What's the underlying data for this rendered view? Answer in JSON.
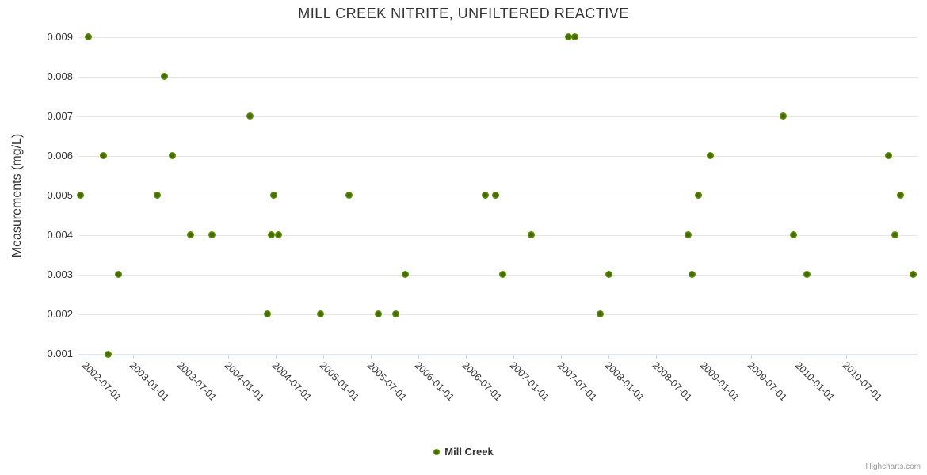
{
  "chart": {
    "title": "MILL CREEK NITRITE, UNFILTERED REACTIVE",
    "y_axis_title": "Measurements (mg/L)",
    "legend_label": "Mill Creek",
    "credit": "Highcharts.com"
  },
  "colors": {
    "marker_green": "#77ad00",
    "marker_green_dark": "#44690a",
    "grid": "#e6e6e6",
    "axis": "#ccd6eb",
    "text": "#333333",
    "credit": "#999999"
  },
  "chart_data": {
    "type": "scatter",
    "title": "MILL CREEK NITRITE, UNFILTERED REACTIVE",
    "xlabel": "",
    "ylabel": "Measurements (mg/L)",
    "ylim": [
      0.001,
      0.009
    ],
    "xlim": [
      "2002-06-05",
      "2011-04-01"
    ],
    "grid": "horizontal-only",
    "legend_position": "bottom-center",
    "y_ticks": [
      0.001,
      0.002,
      0.003,
      0.004,
      0.005,
      0.006,
      0.007,
      0.008,
      0.009
    ],
    "x_ticks": [
      "2002-07-01",
      "2003-01-01",
      "2003-07-01",
      "2004-01-01",
      "2004-07-01",
      "2005-01-01",
      "2005-07-01",
      "2006-01-01",
      "2006-07-01",
      "2007-01-01",
      "2007-07-01",
      "2008-01-01",
      "2008-07-01",
      "2009-01-01",
      "2009-07-01",
      "2010-01-01",
      "2010-07-01"
    ],
    "series": [
      {
        "name": "Mill Creek",
        "color": "#77ad00",
        "points": [
          [
            "2002-06-12",
            0.005
          ],
          [
            "2002-07-12",
            0.009
          ],
          [
            "2002-09-10",
            0.006
          ],
          [
            "2002-09-28",
            0.001
          ],
          [
            "2002-11-05",
            0.003
          ],
          [
            "2003-04-05",
            0.005
          ],
          [
            "2003-05-01",
            0.008
          ],
          [
            "2003-06-01",
            0.006
          ],
          [
            "2003-08-10",
            0.004
          ],
          [
            "2003-11-01",
            0.004
          ],
          [
            "2004-03-25",
            0.007
          ],
          [
            "2004-06-01",
            0.002
          ],
          [
            "2004-06-15",
            0.004
          ],
          [
            "2004-06-25",
            0.005
          ],
          [
            "2004-07-12",
            0.004
          ],
          [
            "2004-12-20",
            0.002
          ],
          [
            "2005-04-10",
            0.005
          ],
          [
            "2005-08-01",
            0.002
          ],
          [
            "2005-10-05",
            0.002
          ],
          [
            "2005-11-10",
            0.003
          ],
          [
            "2006-09-15",
            0.005
          ],
          [
            "2006-10-25",
            0.005
          ],
          [
            "2006-11-20",
            0.003
          ],
          [
            "2007-03-10",
            0.004
          ],
          [
            "2007-08-01",
            0.009
          ],
          [
            "2007-08-25",
            0.009
          ],
          [
            "2007-12-01",
            0.002
          ],
          [
            "2008-01-01",
            0.003
          ],
          [
            "2008-11-01",
            0.004
          ],
          [
            "2008-11-15",
            0.003
          ],
          [
            "2008-12-10",
            0.005
          ],
          [
            "2009-01-25",
            0.006
          ],
          [
            "2009-11-01",
            0.007
          ],
          [
            "2009-12-10",
            0.004
          ],
          [
            "2010-02-01",
            0.003
          ],
          [
            "2010-12-10",
            0.006
          ],
          [
            "2011-01-05",
            0.004
          ],
          [
            "2011-01-25",
            0.005
          ],
          [
            "2011-03-15",
            0.003
          ]
        ]
      }
    ]
  }
}
